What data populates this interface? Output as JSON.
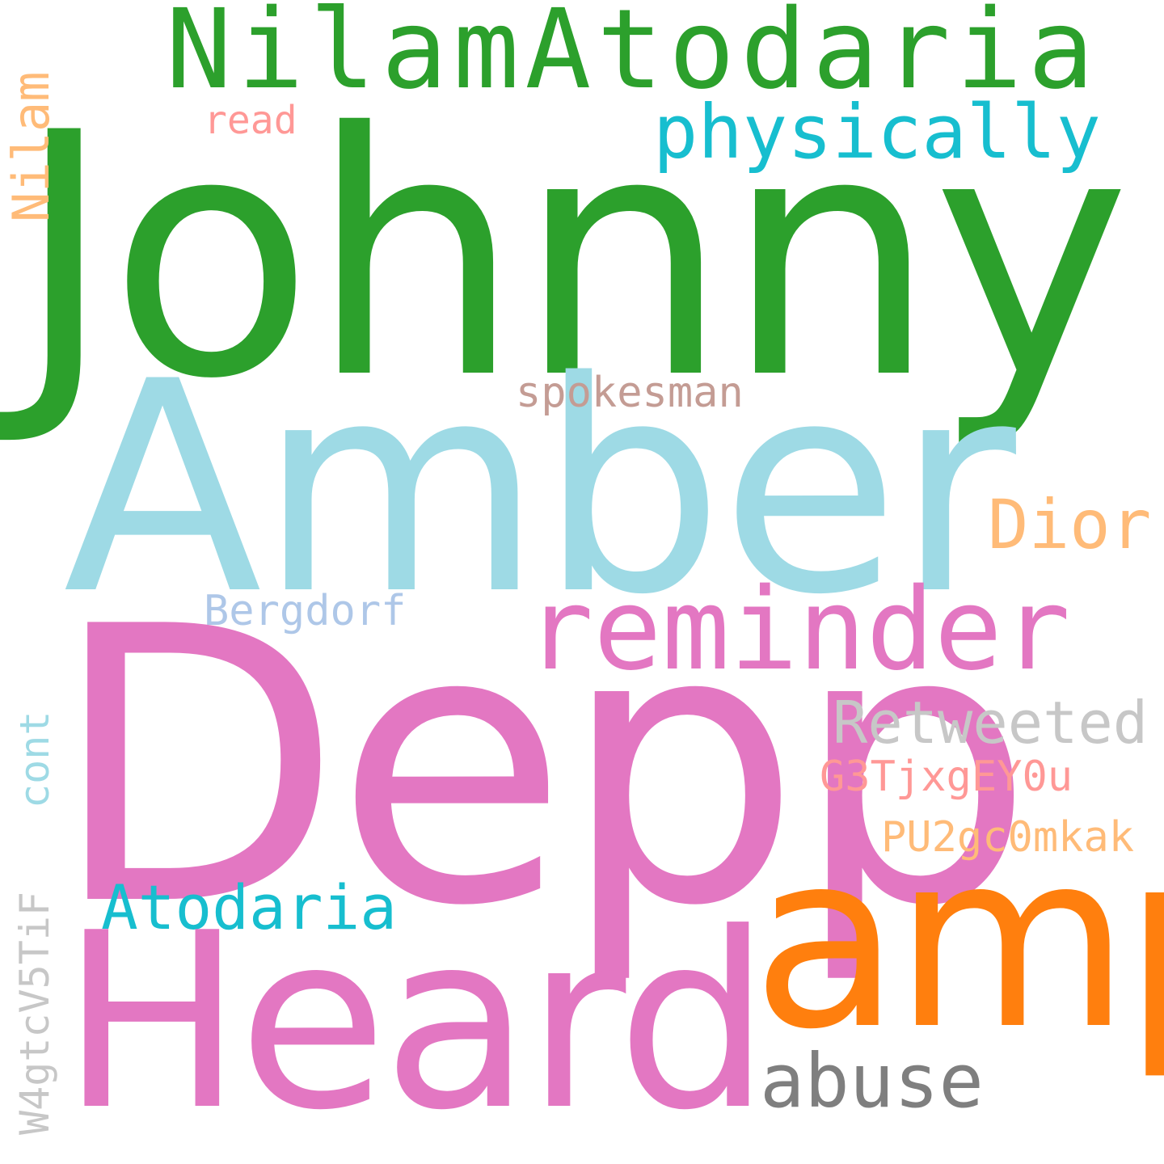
{
  "words": {
    "johnny": "Johnny",
    "nilamatodaria": "NilamAtodaria",
    "physically": "physically",
    "read": "read",
    "nilam": "Nilam",
    "amber": "Amber",
    "spokesman": "spokesman",
    "dior": "Dior",
    "bergdorf": "Bergdorf",
    "reminder": "reminder",
    "depp": "Depp",
    "retweeted": "Retweeted",
    "cont": "cont",
    "g3tjxgeyou": "G3TjxgEY0u",
    "pu2gc0mkak": "PU2gc0mkak",
    "atodaria": "Atodaria",
    "amp": "amp",
    "heard": "Heard",
    "w4gtcv5tif": "W4gtcV5TiF",
    "abuse": "abuse"
  },
  "colors": {
    "green": "#2ca02c",
    "cyan": "#17becf",
    "light_cyan": "#9edae5",
    "pink": "#e377c2",
    "orange": "#ff7f0e",
    "light_orange": "#ffbb78",
    "salmon": "#ff9896",
    "light_blue": "#aec7e8",
    "tan": "#c49c94",
    "light_gray": "#c7c7c7",
    "gray": "#7f7f7f",
    "background": "#ffffff"
  }
}
